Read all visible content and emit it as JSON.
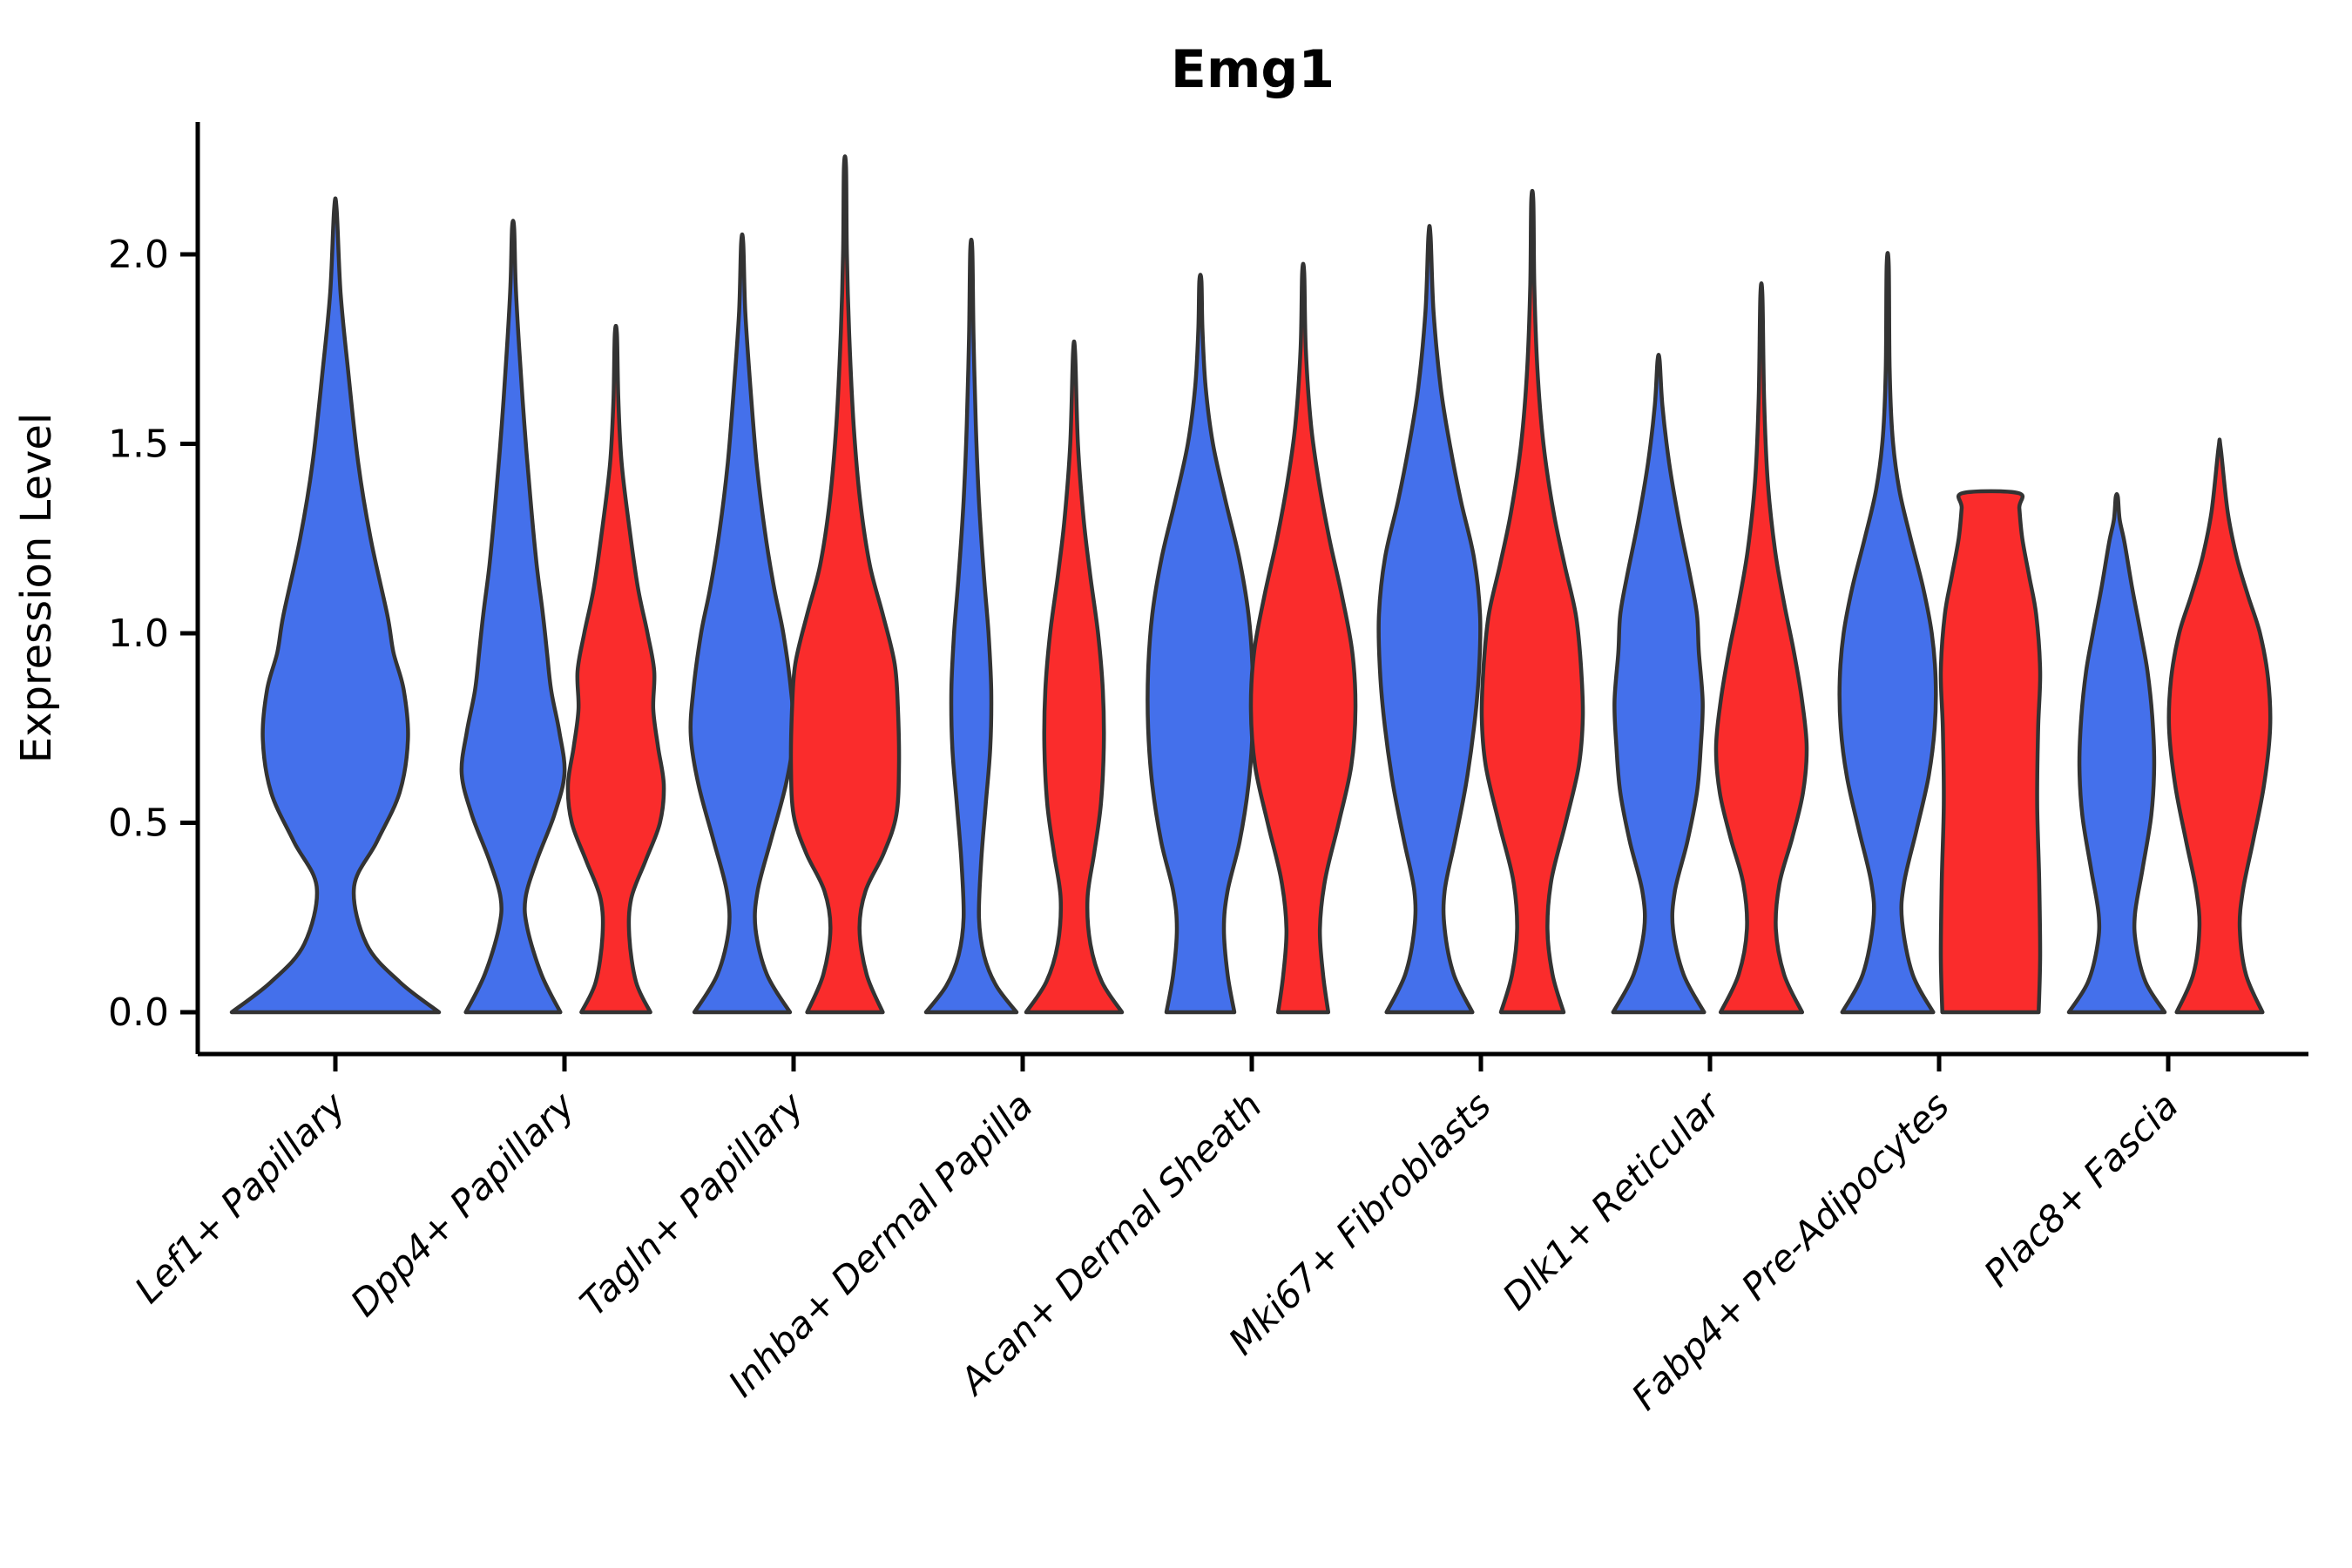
{
  "figure": {
    "title": "Emg1"
  },
  "axes": {
    "ylabel": "Expression Level",
    "ytick_labels": [
      "0.0",
      "0.5",
      "1.0",
      "1.5",
      "2.0"
    ]
  },
  "colors": {
    "blue": "#4470EB",
    "red": "#FA2C2C",
    "edge": "#333333",
    "axis": "#000000"
  },
  "chart_data": {
    "type": "violin",
    "title": "Emg1",
    "xlabel": "",
    "ylabel": "Expression Level",
    "ylim": [
      0,
      2.35
    ],
    "yticks": [
      0.0,
      0.5,
      1.0,
      1.5,
      2.0
    ],
    "grid": false,
    "legend": "none",
    "categories": [
      "Lef1+ Papillary",
      "Dpp4+ Papillary",
      "Tagln+ Papillary",
      "Inhba+ Dermal Papilla",
      "Acan+ Dermal Sheath",
      "Mki67+ Fibroblasts",
      "Dlk1+ Reticular",
      "Fabp4+ Pre-Adipocytes",
      "Plac8+ Fascia"
    ],
    "series_colors": {
      "blue": "#4470EB",
      "red": "#FA2C2C"
    },
    "violins": [
      {
        "category": 0,
        "series": "blue",
        "x_offset": 0,
        "half_width": 119,
        "max": 2.12,
        "flat_top": false,
        "profile": [
          [
            0.0,
            1.0
          ],
          [
            0.08,
            0.62
          ],
          [
            0.18,
            0.3
          ],
          [
            0.33,
            0.18
          ],
          [
            0.45,
            0.4
          ],
          [
            0.58,
            0.62
          ],
          [
            0.72,
            0.7
          ],
          [
            0.85,
            0.66
          ],
          [
            0.95,
            0.56
          ],
          [
            1.05,
            0.5
          ],
          [
            1.25,
            0.34
          ],
          [
            1.45,
            0.22
          ],
          [
            1.7,
            0.12
          ],
          [
            1.9,
            0.05
          ],
          [
            2.12,
            0.012
          ]
        ]
      },
      {
        "category": 1,
        "series": "blue",
        "x_offset": -59,
        "half_width": 59,
        "max": 2.07,
        "flat_top": false,
        "profile": [
          [
            0.0,
            0.92
          ],
          [
            0.1,
            0.55
          ],
          [
            0.22,
            0.28
          ],
          [
            0.3,
            0.24
          ],
          [
            0.4,
            0.46
          ],
          [
            0.52,
            0.8
          ],
          [
            0.63,
            1.0
          ],
          [
            0.74,
            0.9
          ],
          [
            0.85,
            0.74
          ],
          [
            0.95,
            0.66
          ],
          [
            1.05,
            0.58
          ],
          [
            1.18,
            0.46
          ],
          [
            1.35,
            0.34
          ],
          [
            1.55,
            0.22
          ],
          [
            1.75,
            0.12
          ],
          [
            1.92,
            0.05
          ],
          [
            2.07,
            0.012
          ]
        ]
      },
      {
        "category": 1,
        "series": "red",
        "x_offset": 59,
        "half_width": 55,
        "max": 1.79,
        "flat_top": false,
        "profile": [
          [
            0.0,
            0.72
          ],
          [
            0.08,
            0.42
          ],
          [
            0.2,
            0.28
          ],
          [
            0.3,
            0.32
          ],
          [
            0.4,
            0.62
          ],
          [
            0.5,
            0.92
          ],
          [
            0.6,
            1.0
          ],
          [
            0.7,
            0.88
          ],
          [
            0.8,
            0.78
          ],
          [
            0.9,
            0.8
          ],
          [
            1.0,
            0.66
          ],
          [
            1.12,
            0.46
          ],
          [
            1.28,
            0.28
          ],
          [
            1.45,
            0.12
          ],
          [
            1.62,
            0.05
          ],
          [
            1.79,
            0.012
          ]
        ]
      },
      {
        "category": 2,
        "series": "blue",
        "x_offset": -59,
        "half_width": 59,
        "max": 2.03,
        "flat_top": false,
        "profile": [
          [
            0.0,
            0.93
          ],
          [
            0.1,
            0.48
          ],
          [
            0.22,
            0.26
          ],
          [
            0.32,
            0.3
          ],
          [
            0.45,
            0.55
          ],
          [
            0.6,
            0.85
          ],
          [
            0.73,
            1.0
          ],
          [
            0.85,
            0.95
          ],
          [
            1.0,
            0.8
          ],
          [
            1.12,
            0.62
          ],
          [
            1.27,
            0.44
          ],
          [
            1.45,
            0.28
          ],
          [
            1.65,
            0.16
          ],
          [
            1.85,
            0.06
          ],
          [
            2.03,
            0.012
          ]
        ]
      },
      {
        "category": 2,
        "series": "red",
        "x_offset": 59,
        "half_width": 62,
        "max": 2.23,
        "flat_top": false,
        "profile": [
          [
            0.0,
            0.7
          ],
          [
            0.1,
            0.4
          ],
          [
            0.22,
            0.27
          ],
          [
            0.32,
            0.38
          ],
          [
            0.42,
            0.72
          ],
          [
            0.52,
            0.95
          ],
          [
            0.65,
            1.0
          ],
          [
            0.8,
            0.98
          ],
          [
            0.92,
            0.92
          ],
          [
            1.05,
            0.7
          ],
          [
            1.18,
            0.46
          ],
          [
            1.35,
            0.28
          ],
          [
            1.55,
            0.16
          ],
          [
            1.78,
            0.08
          ],
          [
            2.0,
            0.035
          ],
          [
            2.23,
            0.012
          ]
        ]
      },
      {
        "category": 3,
        "series": "blue",
        "x_offset": -59,
        "half_width": 52,
        "max": 2.01,
        "flat_top": false,
        "profile": [
          [
            0.0,
            1.0
          ],
          [
            0.07,
            0.55
          ],
          [
            0.15,
            0.28
          ],
          [
            0.25,
            0.17
          ],
          [
            0.4,
            0.22
          ],
          [
            0.55,
            0.32
          ],
          [
            0.7,
            0.42
          ],
          [
            0.85,
            0.44
          ],
          [
            1.0,
            0.38
          ],
          [
            1.15,
            0.28
          ],
          [
            1.35,
            0.17
          ],
          [
            1.55,
            0.1
          ],
          [
            1.78,
            0.05
          ],
          [
            2.01,
            0.012
          ]
        ]
      },
      {
        "category": 3,
        "series": "red",
        "x_offset": 59,
        "half_width": 55,
        "max": 1.74,
        "flat_top": false,
        "profile": [
          [
            0.0,
            1.0
          ],
          [
            0.08,
            0.58
          ],
          [
            0.18,
            0.34
          ],
          [
            0.3,
            0.28
          ],
          [
            0.42,
            0.42
          ],
          [
            0.55,
            0.56
          ],
          [
            0.7,
            0.62
          ],
          [
            0.85,
            0.6
          ],
          [
            1.0,
            0.5
          ],
          [
            1.15,
            0.34
          ],
          [
            1.3,
            0.2
          ],
          [
            1.5,
            0.08
          ],
          [
            1.74,
            0.012
          ]
        ]
      },
      {
        "category": 4,
        "series": "blue",
        "x_offset": -59,
        "half_width": 60,
        "max": 1.93,
        "flat_top": false,
        "profile": [
          [
            0.0,
            0.65
          ],
          [
            0.1,
            0.52
          ],
          [
            0.22,
            0.45
          ],
          [
            0.32,
            0.52
          ],
          [
            0.45,
            0.75
          ],
          [
            0.6,
            0.92
          ],
          [
            0.75,
            1.0
          ],
          [
            0.9,
            1.0
          ],
          [
            1.05,
            0.92
          ],
          [
            1.2,
            0.74
          ],
          [
            1.35,
            0.48
          ],
          [
            1.5,
            0.24
          ],
          [
            1.65,
            0.1
          ],
          [
            1.8,
            0.04
          ],
          [
            1.93,
            0.015
          ]
        ]
      },
      {
        "category": 4,
        "series": "red",
        "x_offset": 59,
        "half_width": 60,
        "max": 1.95,
        "flat_top": false,
        "profile": [
          [
            0.0,
            0.48
          ],
          [
            0.1,
            0.38
          ],
          [
            0.22,
            0.32
          ],
          [
            0.35,
            0.42
          ],
          [
            0.5,
            0.68
          ],
          [
            0.65,
            0.92
          ],
          [
            0.8,
            1.0
          ],
          [
            0.95,
            0.94
          ],
          [
            1.1,
            0.74
          ],
          [
            1.25,
            0.5
          ],
          [
            1.4,
            0.3
          ],
          [
            1.55,
            0.15
          ],
          [
            1.75,
            0.05
          ],
          [
            1.95,
            0.012
          ]
        ]
      },
      {
        "category": 5,
        "series": "blue",
        "x_offset": -59,
        "half_width": 58,
        "max": 2.05,
        "flat_top": false,
        "profile": [
          [
            0.0,
            0.85
          ],
          [
            0.1,
            0.48
          ],
          [
            0.22,
            0.3
          ],
          [
            0.32,
            0.3
          ],
          [
            0.45,
            0.5
          ],
          [
            0.6,
            0.72
          ],
          [
            0.75,
            0.88
          ],
          [
            0.9,
            0.98
          ],
          [
            1.05,
            1.0
          ],
          [
            1.2,
            0.88
          ],
          [
            1.35,
            0.62
          ],
          [
            1.5,
            0.4
          ],
          [
            1.65,
            0.22
          ],
          [
            1.85,
            0.08
          ],
          [
            2.05,
            0.012
          ]
        ]
      },
      {
        "category": 5,
        "series": "red",
        "x_offset": 59,
        "half_width": 58,
        "max": 2.14,
        "flat_top": false,
        "profile": [
          [
            0.0,
            0.62
          ],
          [
            0.1,
            0.4
          ],
          [
            0.22,
            0.3
          ],
          [
            0.35,
            0.38
          ],
          [
            0.5,
            0.66
          ],
          [
            0.65,
            0.92
          ],
          [
            0.78,
            1.0
          ],
          [
            0.92,
            0.96
          ],
          [
            1.05,
            0.86
          ],
          [
            1.18,
            0.64
          ],
          [
            1.32,
            0.42
          ],
          [
            1.5,
            0.22
          ],
          [
            1.7,
            0.1
          ],
          [
            1.92,
            0.04
          ],
          [
            2.14,
            0.012
          ]
        ]
      },
      {
        "category": 6,
        "series": "blue",
        "x_offset": -59,
        "half_width": 55,
        "max": 1.72,
        "flat_top": false,
        "profile": [
          [
            0.0,
            0.95
          ],
          [
            0.1,
            0.52
          ],
          [
            0.22,
            0.3
          ],
          [
            0.32,
            0.34
          ],
          [
            0.45,
            0.6
          ],
          [
            0.58,
            0.8
          ],
          [
            0.7,
            0.88
          ],
          [
            0.82,
            0.92
          ],
          [
            0.95,
            0.84
          ],
          [
            1.05,
            0.8
          ],
          [
            1.15,
            0.66
          ],
          [
            1.3,
            0.42
          ],
          [
            1.45,
            0.22
          ],
          [
            1.6,
            0.08
          ],
          [
            1.72,
            0.02
          ]
        ]
      },
      {
        "category": 6,
        "series": "red",
        "x_offset": 59,
        "half_width": 52,
        "max": 1.89,
        "flat_top": false,
        "profile": [
          [
            0.0,
            0.9
          ],
          [
            0.1,
            0.5
          ],
          [
            0.22,
            0.32
          ],
          [
            0.34,
            0.4
          ],
          [
            0.46,
            0.68
          ],
          [
            0.58,
            0.92
          ],
          [
            0.7,
            1.0
          ],
          [
            0.82,
            0.9
          ],
          [
            0.95,
            0.72
          ],
          [
            1.08,
            0.5
          ],
          [
            1.22,
            0.3
          ],
          [
            1.4,
            0.14
          ],
          [
            1.62,
            0.06
          ],
          [
            1.89,
            0.012
          ]
        ]
      },
      {
        "category": 7,
        "series": "blue",
        "x_offset": -59,
        "half_width": 55,
        "max": 1.97,
        "flat_top": false,
        "profile": [
          [
            0.0,
            0.95
          ],
          [
            0.1,
            0.52
          ],
          [
            0.24,
            0.3
          ],
          [
            0.34,
            0.34
          ],
          [
            0.48,
            0.6
          ],
          [
            0.62,
            0.85
          ],
          [
            0.75,
            0.98
          ],
          [
            0.88,
            1.0
          ],
          [
            1.0,
            0.92
          ],
          [
            1.12,
            0.74
          ],
          [
            1.25,
            0.48
          ],
          [
            1.38,
            0.24
          ],
          [
            1.52,
            0.1
          ],
          [
            1.7,
            0.04
          ],
          [
            1.97,
            0.012
          ]
        ]
      },
      {
        "category": 7,
        "series": "red",
        "x_offset": 59,
        "half_width": 57,
        "max": 1.37,
        "flat_top": true,
        "profile": [
          [
            0.0,
            0.97
          ],
          [
            0.15,
            1.0
          ],
          [
            0.35,
            0.98
          ],
          [
            0.55,
            0.94
          ],
          [
            0.75,
            0.96
          ],
          [
            0.9,
            1.0
          ],
          [
            1.05,
            0.92
          ],
          [
            1.15,
            0.78
          ],
          [
            1.25,
            0.64
          ],
          [
            1.33,
            0.58
          ],
          [
            1.37,
            0.56
          ]
        ]
      },
      {
        "category": 8,
        "series": "blue",
        "x_offset": -59,
        "half_width": 55,
        "max": 1.36,
        "flat_top": false,
        "profile": [
          [
            0.0,
            1.0
          ],
          [
            0.08,
            0.6
          ],
          [
            0.18,
            0.4
          ],
          [
            0.26,
            0.38
          ],
          [
            0.38,
            0.54
          ],
          [
            0.52,
            0.72
          ],
          [
            0.65,
            0.78
          ],
          [
            0.78,
            0.74
          ],
          [
            0.9,
            0.64
          ],
          [
            1.0,
            0.5
          ],
          [
            1.12,
            0.32
          ],
          [
            1.24,
            0.16
          ],
          [
            1.3,
            0.06
          ],
          [
            1.36,
            0.02
          ]
        ]
      },
      {
        "category": 8,
        "series": "red",
        "x_offset": 59,
        "half_width": 58,
        "max": 1.49,
        "flat_top": false,
        "profile": [
          [
            0.0,
            0.85
          ],
          [
            0.1,
            0.52
          ],
          [
            0.22,
            0.4
          ],
          [
            0.32,
            0.46
          ],
          [
            0.45,
            0.66
          ],
          [
            0.6,
            0.88
          ],
          [
            0.75,
            1.0
          ],
          [
            0.88,
            0.96
          ],
          [
            1.0,
            0.8
          ],
          [
            1.1,
            0.56
          ],
          [
            1.2,
            0.34
          ],
          [
            1.32,
            0.16
          ],
          [
            1.49,
            0.02
          ]
        ]
      }
    ]
  }
}
